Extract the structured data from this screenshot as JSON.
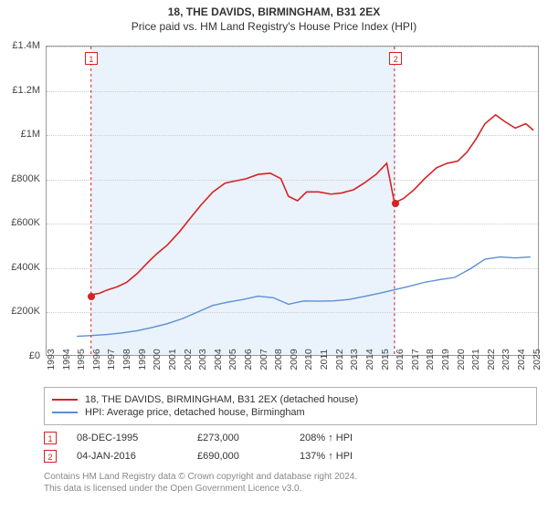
{
  "title": "18, THE DAVIDS, BIRMINGHAM, B31 2EX",
  "subtitle": "Price paid vs. HM Land Registry's House Price Index (HPI)",
  "chart": {
    "type": "line",
    "background_color": "#ffffff",
    "grid_color": "#cccccc",
    "axis_color": "#999999",
    "shade_color": "#eaf2fb",
    "x": {
      "min": 1993,
      "max": 2025.5,
      "tick_step": 1,
      "tick_fontsize": 10.5,
      "rotation": -90
    },
    "y": {
      "min": 0,
      "max": 1400000,
      "ticks": [
        0,
        200000,
        400000,
        600000,
        800000,
        1000000,
        1200000,
        1400000
      ],
      "tick_labels": [
        "£0",
        "£200K",
        "£400K",
        "£600K",
        "£800K",
        "£1M",
        "£1.2M",
        "£1.4M"
      ],
      "tick_fontsize": 11
    },
    "shade": {
      "from_year": 1995.94,
      "to_year": 2016.01
    },
    "series": [
      {
        "id": "subject",
        "label": "18, THE DAVIDS, BIRMINGHAM, B31 2EX (detached house)",
        "color": "#d62222",
        "line_width": 1.6,
        "points": [
          [
            1995.94,
            273000
          ],
          [
            1996.5,
            280000
          ],
          [
            1997,
            295000
          ],
          [
            1997.7,
            310000
          ],
          [
            1998.3,
            330000
          ],
          [
            1999,
            370000
          ],
          [
            1999.7,
            420000
          ],
          [
            2000.3,
            460000
          ],
          [
            2001,
            500000
          ],
          [
            2001.8,
            560000
          ],
          [
            2002.5,
            620000
          ],
          [
            2003.2,
            680000
          ],
          [
            2004,
            740000
          ],
          [
            2004.8,
            780000
          ],
          [
            2005.5,
            790000
          ],
          [
            2006.2,
            800000
          ],
          [
            2007,
            820000
          ],
          [
            2007.8,
            825000
          ],
          [
            2008.5,
            800000
          ],
          [
            2009,
            720000
          ],
          [
            2009.6,
            700000
          ],
          [
            2010.2,
            740000
          ],
          [
            2011,
            740000
          ],
          [
            2011.8,
            730000
          ],
          [
            2012.5,
            735000
          ],
          [
            2013.3,
            750000
          ],
          [
            2014,
            780000
          ],
          [
            2014.8,
            820000
          ],
          [
            2015.5,
            870000
          ],
          [
            2016.01,
            690000
          ],
          [
            2016.6,
            710000
          ],
          [
            2017.3,
            750000
          ],
          [
            2018,
            800000
          ],
          [
            2018.8,
            850000
          ],
          [
            2019.5,
            870000
          ],
          [
            2020.2,
            880000
          ],
          [
            2020.8,
            920000
          ],
          [
            2021.4,
            980000
          ],
          [
            2022,
            1050000
          ],
          [
            2022.7,
            1090000
          ],
          [
            2023.3,
            1060000
          ],
          [
            2024,
            1030000
          ],
          [
            2024.7,
            1050000
          ],
          [
            2025.2,
            1020000
          ]
        ]
      },
      {
        "id": "hpi",
        "label": "HPI: Average price, detached house, Birmingham",
        "color": "#5a8fd6",
        "line_width": 1.4,
        "points": [
          [
            1995.0,
            85000
          ],
          [
            1996,
            88000
          ],
          [
            1997,
            93000
          ],
          [
            1998,
            100000
          ],
          [
            1999,
            110000
          ],
          [
            2000,
            125000
          ],
          [
            2001,
            142000
          ],
          [
            2002,
            165000
          ],
          [
            2003,
            195000
          ],
          [
            2004,
            225000
          ],
          [
            2005,
            240000
          ],
          [
            2006,
            252000
          ],
          [
            2007,
            267000
          ],
          [
            2008,
            260000
          ],
          [
            2009,
            230000
          ],
          [
            2010,
            245000
          ],
          [
            2011,
            244000
          ],
          [
            2012,
            246000
          ],
          [
            2013,
            252000
          ],
          [
            2014,
            265000
          ],
          [
            2015,
            280000
          ],
          [
            2016,
            296000
          ],
          [
            2017,
            312000
          ],
          [
            2018,
            330000
          ],
          [
            2019,
            342000
          ],
          [
            2020,
            352000
          ],
          [
            2021,
            390000
          ],
          [
            2022,
            435000
          ],
          [
            2023,
            445000
          ],
          [
            2024,
            440000
          ],
          [
            2025,
            445000
          ]
        ]
      }
    ],
    "sale_markers": [
      {
        "n": "1",
        "year": 1995.94,
        "price": 273000,
        "color": "#d62222"
      },
      {
        "n": "2",
        "year": 2016.01,
        "price": 690000,
        "color": "#d62222"
      }
    ]
  },
  "legend": {
    "border_color": "#b0b0b0",
    "fontsize": 11
  },
  "sales": [
    {
      "n": "1",
      "date": "08-DEC-1995",
      "price": "£273,000",
      "rel": "208% ↑ HPI",
      "color": "#d62222"
    },
    {
      "n": "2",
      "date": "04-JAN-2016",
      "price": "£690,000",
      "rel": "137% ↑ HPI",
      "color": "#d62222"
    }
  ],
  "footer_line1": "Contains HM Land Registry data © Crown copyright and database right 2024.",
  "footer_line2": "This data is licensed under the Open Government Licence v3.0."
}
